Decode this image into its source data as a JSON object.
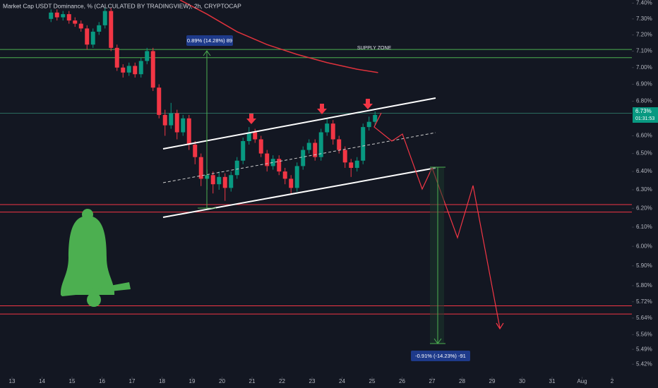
{
  "chart_data": {
    "type": "candlestick",
    "title": "Market Cap USDT Dominance, % (CALCULATED BY TRADINGVIEW), 2h, CRYPTOCAP",
    "log_scale": true,
    "grid": false,
    "up_color": "#089981",
    "down_color": "#f23645",
    "xlim": [
      12.6,
      33.66
    ],
    "ylim": [
      5.31,
      7.42
    ],
    "xticks": [
      13,
      14,
      15,
      16,
      17,
      18,
      19,
      20,
      21,
      22,
      23,
      24,
      25,
      26,
      27,
      28,
      29,
      30,
      31,
      {
        "value": 32,
        "label": "Aug"
      },
      {
        "value": 33,
        "label": "2"
      }
    ],
    "yticks": [
      {
        "value": 7.4,
        "label": "7.40%"
      },
      {
        "value": 7.3,
        "label": "7.30%"
      },
      {
        "value": 7.2,
        "label": "7.20%"
      },
      {
        "value": 7.1,
        "label": "7.10%"
      },
      {
        "value": 7.0,
        "label": "7.00%"
      },
      {
        "value": 6.9,
        "label": "6.90%"
      },
      {
        "value": 6.8,
        "label": "6.80%"
      },
      {
        "value": 6.6,
        "label": "6.60%"
      },
      {
        "value": 6.5,
        "label": "6.50%"
      },
      {
        "value": 6.4,
        "label": "6.40%"
      },
      {
        "value": 6.3,
        "label": "6.30%"
      },
      {
        "value": 6.2,
        "label": "6.20%"
      },
      {
        "value": 6.1,
        "label": "6.10%"
      },
      {
        "value": 6.0,
        "label": "6.00%"
      },
      {
        "value": 5.9,
        "label": "5.90%"
      },
      {
        "value": 5.8,
        "label": "5.80%"
      },
      {
        "value": 5.72,
        "label": "5.72%"
      },
      {
        "value": 5.64,
        "label": "5.64%"
      },
      {
        "value": 5.56,
        "label": "5.56%"
      },
      {
        "value": 5.49,
        "label": "5.49%"
      },
      {
        "value": 5.42,
        "label": "5.42%"
      }
    ],
    "x": [
      14.3,
      14.5,
      14.7,
      14.9,
      15.1,
      15.3,
      15.5,
      15.7,
      15.9,
      16.1,
      16.3,
      16.5,
      16.7,
      16.9,
      17.1,
      17.3,
      17.5,
      17.7,
      17.9,
      18.1,
      18.3,
      18.5,
      18.7,
      18.9,
      19.1,
      19.3,
      19.5,
      19.7,
      19.9,
      20.1,
      20.3,
      20.5,
      20.7,
      20.9,
      21.1,
      21.3,
      21.5,
      21.7,
      21.9,
      22.1,
      22.3,
      22.5,
      22.7,
      22.9,
      23.1,
      23.3,
      23.5,
      23.7,
      23.9,
      24.1,
      24.3,
      24.5,
      24.7,
      24.9,
      25.1
    ],
    "open": [
      7.3,
      7.34,
      7.31,
      7.33,
      7.29,
      7.27,
      7.24,
      7.14,
      7.22,
      7.26,
      7.35,
      7.12,
      7.0,
      6.97,
      7.01,
      6.96,
      7.04,
      7.1,
      6.88,
      6.72,
      6.66,
      6.73,
      6.62,
      6.7,
      6.55,
      6.48,
      6.36,
      6.38,
      6.33,
      6.37,
      6.31,
      6.38,
      6.46,
      6.57,
      6.62,
      6.58,
      6.5,
      6.43,
      6.47,
      6.4,
      6.36,
      6.31,
      6.43,
      6.52,
      6.56,
      6.48,
      6.62,
      6.67,
      6.58,
      6.52,
      6.45,
      6.42,
      6.46,
      6.65,
      6.68
    ],
    "high": [
      7.36,
      7.36,
      7.35,
      7.35,
      7.31,
      7.29,
      7.26,
      7.24,
      7.28,
      7.37,
      7.37,
      7.14,
      7.02,
      7.03,
      7.03,
      7.06,
      7.12,
      7.12,
      6.9,
      6.75,
      6.79,
      6.75,
      6.72,
      6.72,
      6.57,
      6.5,
      6.41,
      6.4,
      6.4,
      6.39,
      6.4,
      6.48,
      6.59,
      6.65,
      6.64,
      6.6,
      6.52,
      6.49,
      6.49,
      6.42,
      6.38,
      6.45,
      6.54,
      6.58,
      6.58,
      6.64,
      6.7,
      6.69,
      6.6,
      6.54,
      6.47,
      6.48,
      6.67,
      6.71,
      6.74
    ],
    "low": [
      7.28,
      7.29,
      7.29,
      7.27,
      7.25,
      7.22,
      7.11,
      7.12,
      7.2,
      7.24,
      7.1,
      6.98,
      6.94,
      6.95,
      6.94,
      6.94,
      7.02,
      6.86,
      6.7,
      6.6,
      6.64,
      6.58,
      6.6,
      6.52,
      6.44,
      6.32,
      6.3,
      6.28,
      6.3,
      6.24,
      6.29,
      6.36,
      6.44,
      6.55,
      6.56,
      6.48,
      6.4,
      6.41,
      6.38,
      6.33,
      6.28,
      6.29,
      6.41,
      6.5,
      6.46,
      6.46,
      6.6,
      6.55,
      6.5,
      6.42,
      6.37,
      6.4,
      6.44,
      6.63,
      6.66
    ],
    "close": [
      7.34,
      7.31,
      7.33,
      7.29,
      7.27,
      7.24,
      7.14,
      7.22,
      7.26,
      7.35,
      7.12,
      7.0,
      6.97,
      7.01,
      6.96,
      7.04,
      7.1,
      6.88,
      6.72,
      6.66,
      6.73,
      6.62,
      6.7,
      6.55,
      6.48,
      6.36,
      6.38,
      6.33,
      6.37,
      6.31,
      6.38,
      6.46,
      6.57,
      6.62,
      6.58,
      6.5,
      6.43,
      6.47,
      6.4,
      6.36,
      6.31,
      6.43,
      6.52,
      6.56,
      6.48,
      6.62,
      6.67,
      6.58,
      6.52,
      6.45,
      6.42,
      6.46,
      6.65,
      6.68,
      6.72
    ],
    "moving_average": {
      "color": "#e0323c",
      "x": [
        18.6,
        19.5,
        20.5,
        21.5,
        22.5,
        23.5,
        24.5,
        25.2
      ],
      "values": [
        7.42,
        7.33,
        7.22,
        7.14,
        7.08,
        7.03,
        6.99,
        6.97
      ]
    },
    "levels": [
      {
        "value": 7.11,
        "color": "#4caf50"
      },
      {
        "value": 7.06,
        "color": "#4caf50"
      },
      {
        "value": 6.73,
        "color": "#2a6b5f"
      },
      {
        "value": 6.22,
        "color": "#f23645"
      },
      {
        "value": 6.18,
        "color": "#f23645"
      },
      {
        "value": 5.7,
        "color": "#f23645"
      },
      {
        "value": 5.66,
        "color": "#f23645"
      }
    ],
    "last_price": {
      "label": "6.73%",
      "countdown": "01:31:53"
    },
    "annotations": {
      "supply_zone": "SUPPLY ZONE",
      "measure_up": "0.89% (14.28%) 89",
      "measure_down": "-0.91% (-14.23%) -91"
    }
  }
}
